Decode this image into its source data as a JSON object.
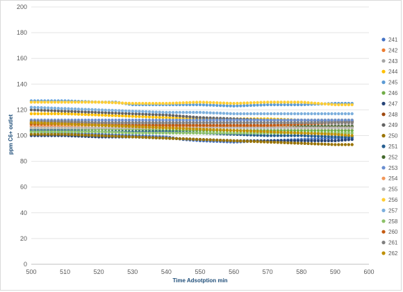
{
  "chart_data": {
    "type": "scatter",
    "xlabel": "Time Adsotption min",
    "ylabel": "ppm C6+ outlet",
    "xlim": [
      500,
      600
    ],
    "ylim": [
      0,
      200
    ],
    "x_ticks": [
      500,
      510,
      520,
      530,
      540,
      550,
      560,
      570,
      580,
      590,
      600
    ],
    "y_ticks": [
      0,
      20,
      40,
      60,
      80,
      100,
      120,
      140,
      160,
      180,
      200
    ],
    "grid": "horizontal",
    "legend_position": "right",
    "x_range_of_data": [
      500,
      595
    ],
    "series": [
      {
        "name": "241",
        "color": "#4472c4",
        "points": [
          [
            500,
            103
          ],
          [
            510,
            102
          ],
          [
            520,
            101
          ],
          [
            530,
            100
          ],
          [
            540,
            99
          ],
          [
            545,
            97
          ],
          [
            550,
            96
          ],
          [
            560,
            95
          ],
          [
            570,
            96
          ],
          [
            580,
            97
          ],
          [
            590,
            98
          ],
          [
            595,
            98
          ]
        ]
      },
      {
        "name": "242",
        "color": "#ed7d31",
        "points": [
          [
            500,
            107
          ],
          [
            510,
            107
          ],
          [
            520,
            106
          ],
          [
            530,
            106
          ],
          [
            540,
            106
          ],
          [
            550,
            106
          ],
          [
            560,
            107
          ],
          [
            570,
            107
          ],
          [
            580,
            107
          ],
          [
            590,
            107
          ],
          [
            595,
            107
          ]
        ]
      },
      {
        "name": "243",
        "color": "#a5a5a5",
        "points": [
          [
            500,
            112
          ],
          [
            510,
            111
          ],
          [
            520,
            110
          ],
          [
            530,
            109
          ],
          [
            540,
            109
          ],
          [
            550,
            108
          ],
          [
            560,
            108
          ],
          [
            570,
            108
          ],
          [
            580,
            108
          ],
          [
            590,
            108
          ],
          [
            595,
            108
          ]
        ]
      },
      {
        "name": "244",
        "color": "#ffc000",
        "points": [
          [
            500,
            117
          ],
          [
            510,
            117
          ],
          [
            520,
            116
          ],
          [
            530,
            115
          ],
          [
            540,
            114
          ],
          [
            550,
            113
          ],
          [
            560,
            113
          ],
          [
            570,
            113
          ],
          [
            580,
            112
          ],
          [
            590,
            112
          ],
          [
            595,
            112
          ]
        ]
      },
      {
        "name": "245",
        "color": "#5b9bd5",
        "points": [
          [
            500,
            127
          ],
          [
            510,
            127
          ],
          [
            520,
            126
          ],
          [
            525,
            126
          ],
          [
            530,
            124
          ],
          [
            540,
            124
          ],
          [
            550,
            124
          ],
          [
            560,
            123
          ],
          [
            570,
            124
          ],
          [
            580,
            124
          ],
          [
            590,
            125
          ],
          [
            595,
            125
          ]
        ]
      },
      {
        "name": "246",
        "color": "#70ad47",
        "points": [
          [
            500,
            105
          ],
          [
            510,
            105
          ],
          [
            520,
            105
          ],
          [
            530,
            105
          ],
          [
            540,
            104
          ],
          [
            550,
            104
          ],
          [
            560,
            104
          ],
          [
            570,
            104
          ],
          [
            580,
            104
          ],
          [
            590,
            104
          ],
          [
            595,
            104
          ]
        ]
      },
      {
        "name": "247",
        "color": "#264478",
        "points": [
          [
            500,
            100
          ],
          [
            510,
            100
          ],
          [
            520,
            99
          ],
          [
            530,
            99
          ],
          [
            540,
            98
          ],
          [
            550,
            97
          ],
          [
            560,
            96
          ],
          [
            570,
            96
          ],
          [
            580,
            96
          ],
          [
            590,
            96
          ],
          [
            595,
            97
          ]
        ]
      },
      {
        "name": "248",
        "color": "#9e480e",
        "points": [
          [
            500,
            110
          ],
          [
            510,
            110
          ],
          [
            520,
            110
          ],
          [
            530,
            110
          ],
          [
            540,
            110
          ],
          [
            550,
            110
          ],
          [
            560,
            110
          ],
          [
            570,
            110
          ],
          [
            580,
            110
          ],
          [
            590,
            110
          ],
          [
            595,
            111
          ]
        ]
      },
      {
        "name": "249",
        "color": "#636363",
        "points": [
          [
            500,
            120
          ],
          [
            510,
            119
          ],
          [
            520,
            118
          ],
          [
            530,
            117
          ],
          [
            540,
            116
          ],
          [
            550,
            114
          ],
          [
            560,
            113
          ],
          [
            570,
            112
          ],
          [
            580,
            112
          ],
          [
            590,
            111
          ],
          [
            595,
            111
          ]
        ]
      },
      {
        "name": "250",
        "color": "#997300",
        "points": [
          [
            500,
            101
          ],
          [
            510,
            101
          ],
          [
            520,
            100
          ],
          [
            530,
            99
          ],
          [
            540,
            98
          ],
          [
            550,
            97
          ],
          [
            560,
            96
          ],
          [
            570,
            95
          ],
          [
            580,
            94
          ],
          [
            590,
            93
          ],
          [
            595,
            93
          ]
        ]
      },
      {
        "name": "251",
        "color": "#255e91",
        "points": [
          [
            500,
            104
          ],
          [
            510,
            104
          ],
          [
            520,
            103
          ],
          [
            530,
            103
          ],
          [
            540,
            103
          ],
          [
            550,
            102
          ],
          [
            560,
            101
          ],
          [
            570,
            100
          ],
          [
            580,
            100
          ],
          [
            590,
            99
          ],
          [
            595,
            99
          ]
        ]
      },
      {
        "name": "252",
        "color": "#43682b",
        "points": [
          [
            500,
            109
          ],
          [
            510,
            109
          ],
          [
            520,
            108
          ],
          [
            530,
            108
          ],
          [
            540,
            108
          ],
          [
            550,
            108
          ],
          [
            560,
            107
          ],
          [
            570,
            107
          ],
          [
            580,
            107
          ],
          [
            590,
            107
          ],
          [
            595,
            107
          ]
        ]
      },
      {
        "name": "253",
        "color": "#698ed0",
        "points": [
          [
            500,
            112
          ],
          [
            510,
            112
          ],
          [
            520,
            112
          ],
          [
            530,
            112
          ],
          [
            540,
            112
          ],
          [
            550,
            112
          ],
          [
            560,
            112
          ],
          [
            570,
            112
          ],
          [
            580,
            112
          ],
          [
            590,
            112
          ],
          [
            595,
            112
          ]
        ]
      },
      {
        "name": "254",
        "color": "#f1975a",
        "points": [
          [
            500,
            108
          ],
          [
            510,
            108
          ],
          [
            520,
            108
          ],
          [
            530,
            107
          ],
          [
            540,
            107
          ],
          [
            550,
            107
          ],
          [
            560,
            107
          ],
          [
            570,
            107
          ],
          [
            580,
            106
          ],
          [
            590,
            106
          ],
          [
            595,
            106
          ]
        ]
      },
      {
        "name": "255",
        "color": "#b7b7b7",
        "points": [
          [
            500,
            106
          ],
          [
            510,
            106
          ],
          [
            520,
            106
          ],
          [
            530,
            106
          ],
          [
            540,
            106
          ],
          [
            550,
            106
          ],
          [
            560,
            106
          ],
          [
            570,
            106
          ],
          [
            580,
            106
          ],
          [
            590,
            106
          ],
          [
            595,
            106
          ]
        ]
      },
      {
        "name": "256",
        "color": "#ffcd33",
        "points": [
          [
            500,
            126
          ],
          [
            510,
            126
          ],
          [
            520,
            126
          ],
          [
            530,
            125
          ],
          [
            540,
            125
          ],
          [
            550,
            126
          ],
          [
            560,
            125
          ],
          [
            570,
            126
          ],
          [
            580,
            126
          ],
          [
            590,
            124
          ],
          [
            595,
            124
          ]
        ]
      },
      {
        "name": "257",
        "color": "#7cafdd",
        "points": [
          [
            500,
            122
          ],
          [
            510,
            121
          ],
          [
            520,
            120
          ],
          [
            530,
            119
          ],
          [
            540,
            118
          ],
          [
            550,
            118
          ],
          [
            560,
            117
          ],
          [
            570,
            117
          ],
          [
            580,
            117
          ],
          [
            590,
            117
          ],
          [
            595,
            117
          ]
        ]
      },
      {
        "name": "258",
        "color": "#8cc168",
        "points": [
          [
            500,
            103
          ],
          [
            510,
            103
          ],
          [
            520,
            103
          ],
          [
            530,
            102
          ],
          [
            540,
            102
          ],
          [
            550,
            102
          ],
          [
            560,
            102
          ],
          [
            570,
            102
          ],
          [
            580,
            102
          ],
          [
            590,
            102
          ],
          [
            595,
            102
          ]
        ]
      },
      {
        "name": "260",
        "color": "#c55a11",
        "points": [
          [
            500,
            109
          ],
          [
            510,
            109
          ],
          [
            520,
            109
          ],
          [
            530,
            108
          ],
          [
            540,
            108
          ],
          [
            550,
            108
          ],
          [
            560,
            108
          ],
          [
            570,
            108
          ],
          [
            580,
            109
          ],
          [
            590,
            110
          ],
          [
            595,
            110
          ]
        ]
      },
      {
        "name": "261",
        "color": "#7f7f7f",
        "points": [
          [
            500,
            111
          ],
          [
            510,
            111
          ],
          [
            520,
            110
          ],
          [
            530,
            110
          ],
          [
            540,
            110
          ],
          [
            550,
            110
          ],
          [
            560,
            110
          ],
          [
            570,
            110
          ],
          [
            580,
            110
          ],
          [
            590,
            110
          ],
          [
            595,
            110
          ]
        ]
      },
      {
        "name": "262",
        "color": "#bf9000",
        "points": [
          [
            500,
            110
          ],
          [
            510,
            109
          ],
          [
            520,
            108
          ],
          [
            530,
            107
          ],
          [
            540,
            106
          ],
          [
            550,
            105
          ],
          [
            560,
            104
          ],
          [
            570,
            103
          ],
          [
            580,
            102
          ],
          [
            590,
            101
          ],
          [
            595,
            100
          ]
        ]
      }
    ]
  }
}
